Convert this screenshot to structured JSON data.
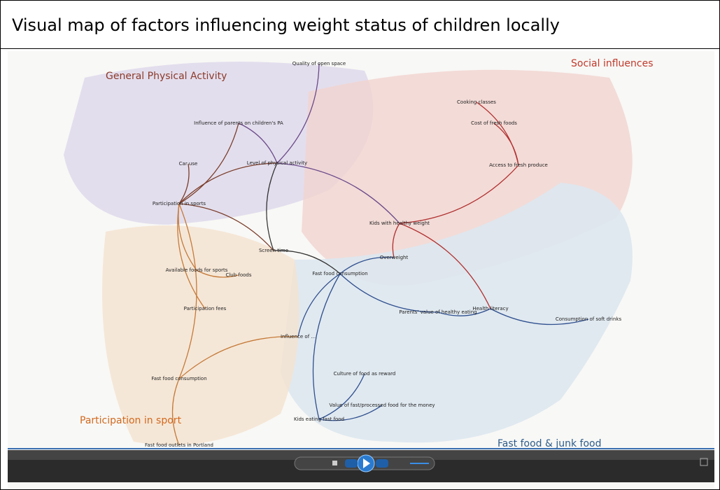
{
  "header": {
    "title": "Visual map of factors influencing weight status of children locally"
  },
  "regions": [
    "General Physical Activity",
    "Social influences",
    "Participation in sport",
    "Fast food & junk food"
  ],
  "nodes": [
    {
      "label": "Participation in sports"
    },
    {
      "label": "Level of physical activity"
    },
    {
      "label": "Screen time"
    },
    {
      "label": "Fast food consumption"
    },
    {
      "label": "Kids with healthy weight"
    },
    {
      "label": "Overweight"
    },
    {
      "label": "Car use"
    },
    {
      "label": "Influence of parents on children's PA"
    },
    {
      "label": "Quality of open space"
    },
    {
      "label": "Cooking classes"
    },
    {
      "label": "Cost of fresh foods"
    },
    {
      "label": "Access to fresh produce"
    },
    {
      "label": "Health literacy"
    },
    {
      "label": "Parents' value of healthy eating"
    },
    {
      "label": "Available foods for sports"
    },
    {
      "label": "Club foods"
    },
    {
      "label": "Participation fees"
    },
    {
      "label": "Fast food consumption"
    },
    {
      "label": "Fast food outlets in Portland"
    },
    {
      "label": "Kids eating fast food"
    },
    {
      "label": "Culture of food as reward"
    },
    {
      "label": "Value of fast/processed food for the money"
    },
    {
      "label": "Influence of ..."
    },
    {
      "label": "Consumption of soft drinks"
    }
  ]
}
